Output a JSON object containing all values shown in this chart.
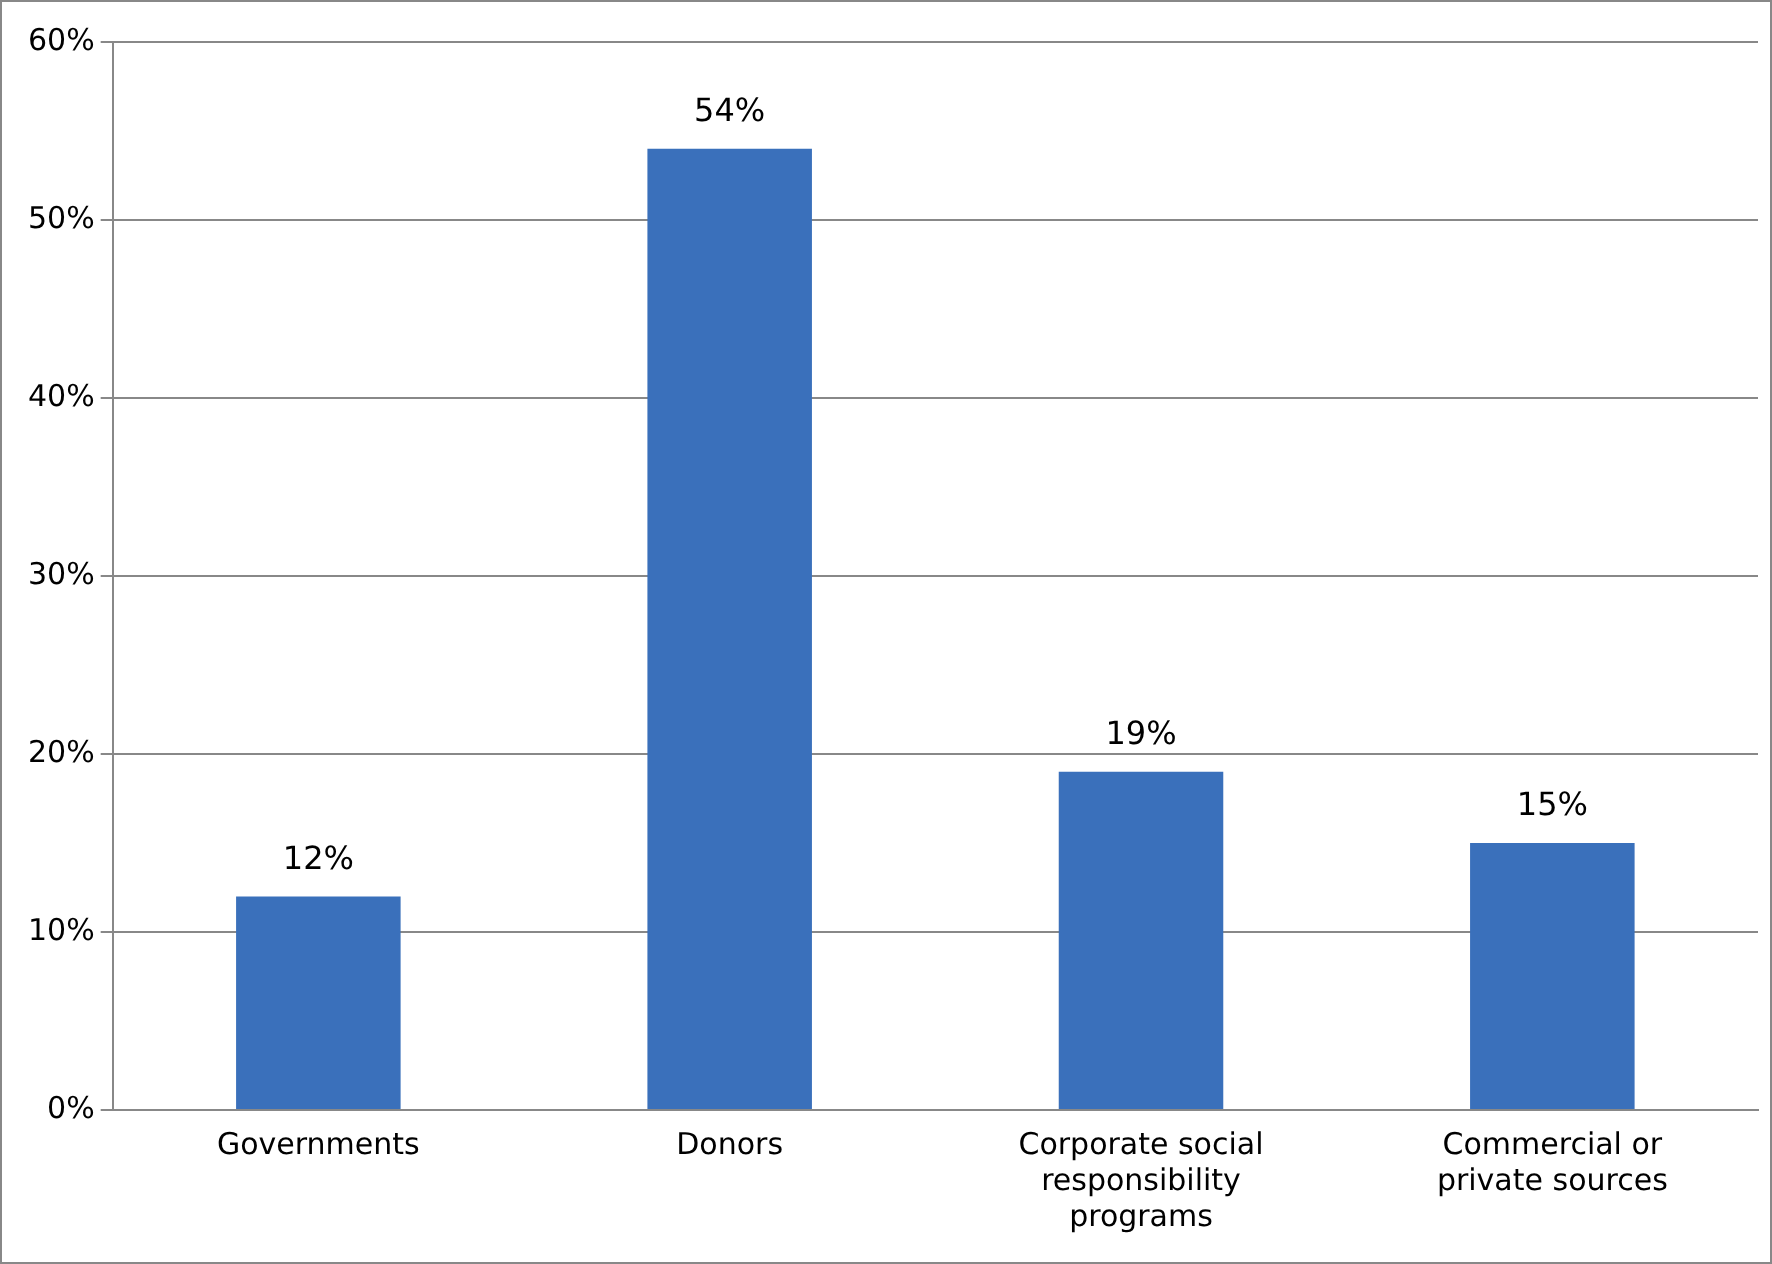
{
  "chart_data": {
    "type": "bar",
    "categories": [
      "Governments",
      "Donors",
      "Corporate social responsibility programs",
      "Commercial or private sources"
    ],
    "values": [
      12,
      54,
      19,
      15
    ],
    "value_labels": [
      "12%",
      "54%",
      "19%",
      "15%"
    ],
    "color": "#3a70bb",
    "ylim": [
      0,
      60
    ],
    "yticks": [
      {
        "value": 0,
        "label": "0%"
      },
      {
        "value": 10,
        "label": "10%"
      },
      {
        "value": 20,
        "label": "20%"
      },
      {
        "value": 30,
        "label": "30%"
      },
      {
        "value": 40,
        "label": "40%"
      },
      {
        "value": 50,
        "label": "50%"
      },
      {
        "value": 60,
        "label": "60%"
      }
    ],
    "grid": "y",
    "legend": false
  }
}
